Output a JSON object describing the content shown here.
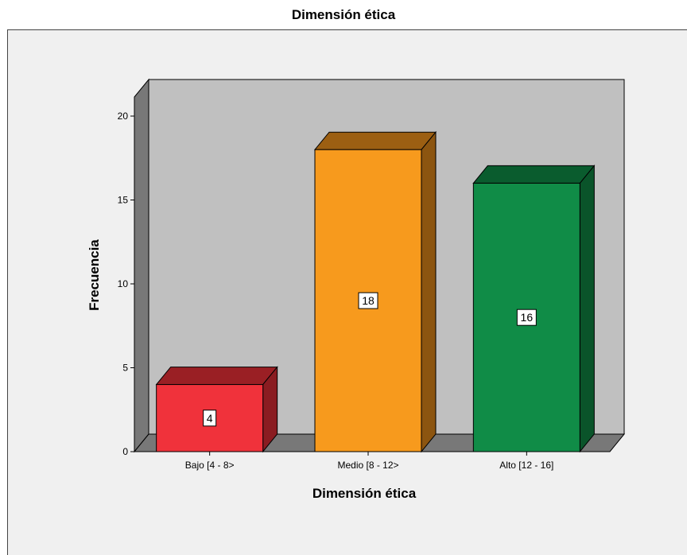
{
  "chart_data": {
    "type": "bar",
    "title": "Dimensión ética",
    "xlabel": "Dimensión ética",
    "ylabel": "Frecuencia",
    "categories": [
      "Bajo [4 - 8>",
      "Medio [8 - 12>",
      "Alto [12 - 16]"
    ],
    "values": [
      4,
      18,
      16
    ],
    "data_labels": [
      "4",
      "18",
      "16"
    ],
    "ylim": [
      0,
      20
    ],
    "yticks": [
      0,
      5,
      10,
      15,
      20
    ],
    "ytick_labels": [
      "0",
      "5",
      "10",
      "15",
      "20"
    ],
    "bar_colors": [
      "#f0323b",
      "#f79a1d",
      "#108c47"
    ],
    "bar_top_colors": [
      "#9a1f24",
      "#9c5f12",
      "#0a5c2e"
    ],
    "bar_side_colors": [
      "#8a1c21",
      "#8c5510",
      "#0a542a"
    ],
    "plot_back_color": "#c0c0c0",
    "plot_side_color": "#787878",
    "background_color": "#f0f0f0",
    "style": "3d",
    "grid": false,
    "legend": "none"
  }
}
